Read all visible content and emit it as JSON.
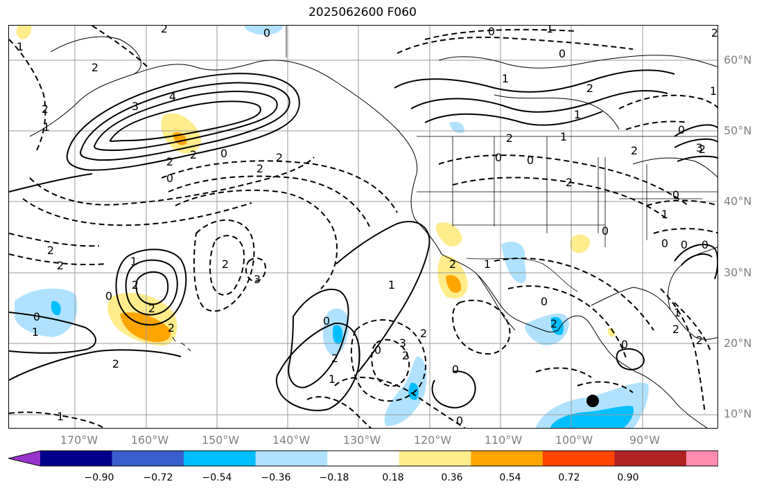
{
  "title": "2025062600 F060",
  "map": {
    "lat_labels": [
      "60°N",
      "50°N",
      "40°N",
      "30°N",
      "20°N",
      "10°N"
    ],
    "lon_labels": [
      "170°W",
      "160°W",
      "150°W",
      "140°W",
      "130°W",
      "120°W",
      "110°W",
      "100°W",
      "90°W"
    ],
    "contour_labels": [
      "0",
      "2",
      "1",
      "2",
      "2",
      "4",
      "3",
      "2",
      "2",
      "1",
      "2",
      "2",
      "0",
      "2",
      "0",
      "2",
      "2",
      "0",
      "1",
      "0",
      "2",
      "2",
      "1",
      "2",
      "2",
      "2",
      "0",
      "0",
      "3",
      "1",
      "2",
      "3",
      "2",
      "2",
      "1",
      "0",
      "0",
      "1",
      "0",
      "2",
      "0",
      "1",
      "1",
      "2",
      "2",
      "0",
      "0",
      "1",
      "0",
      "1",
      "2",
      "0",
      "1",
      "0",
      "2",
      "0",
      "2",
      "3",
      "0",
      "0",
      "1",
      "2",
      "1",
      "2",
      "1",
      "0",
      "2",
      "0"
    ],
    "marker": "filled-circle"
  },
  "colorbar": {
    "tick_labels": [
      "−0.90",
      "−0.72",
      "−0.54",
      "−0.36",
      "−0.18",
      "0.18",
      "0.36",
      "0.54",
      "0.72",
      "0.90"
    ],
    "colors": [
      "#9932cc",
      "#00008b",
      "#3a5fcd",
      "#00bfff",
      "#b0e2ff",
      "#ffffff",
      "#ffec8b",
      "#ffa500",
      "#ff4500",
      "#b22222",
      "#ff8cb0"
    ]
  }
}
